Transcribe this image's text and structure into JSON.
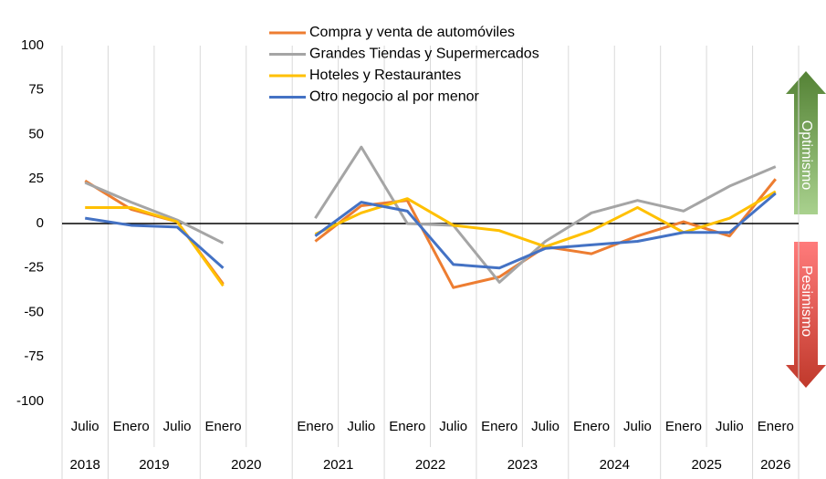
{
  "chart_data": {
    "type": "line",
    "categories": [
      "Julio",
      "Enero",
      "Julio",
      "Enero",
      null,
      "Enero",
      "Julio",
      "Enero",
      "Julio",
      "Enero",
      "Julio",
      "Enero",
      "Julio",
      "Enero",
      "Julio",
      "Enero"
    ],
    "years": [
      "2018",
      "2019",
      "2019",
      "2020",
      "2020",
      "2021",
      "2021",
      "2022",
      "2022",
      "2023",
      "2023",
      "2024",
      "2024",
      "2025",
      "2025",
      "2026"
    ],
    "series": [
      {
        "name": "Compra y venta de automóviles",
        "color": "#ED7D31",
        "values": [
          24,
          8,
          1,
          -34,
          null,
          -10,
          10,
          13,
          -36,
          -30,
          -13,
          -17,
          -7,
          1,
          -7,
          25
        ]
      },
      {
        "name": "Grandes Tiendas y Supermercados",
        "color": "#A5A5A5",
        "values": [
          23,
          12,
          2,
          -11,
          null,
          3,
          43,
          0,
          -1,
          -33,
          -10,
          6,
          13,
          7,
          21,
          32
        ]
      },
      {
        "name": "Hoteles y Restaurantes",
        "color": "#FFC000",
        "values": [
          9,
          9,
          1,
          -35,
          null,
          -6,
          6,
          14,
          -1,
          -4,
          -13,
          -4,
          9,
          -5,
          3,
          18
        ]
      },
      {
        "name": "Otro negocio al por menor",
        "color": "#4472C4",
        "values": [
          3,
          -1,
          -2,
          -25,
          null,
          -7,
          12,
          7,
          -23,
          -25,
          -14,
          -12,
          -10,
          -5,
          -5,
          17
        ]
      }
    ],
    "ylim": [
      -100,
      100
    ],
    "yticks": [
      100,
      75,
      50,
      25,
      0,
      -25,
      -50,
      -75,
      -100
    ],
    "annotations": [
      "Optimismo",
      "Pesimismo"
    ]
  }
}
